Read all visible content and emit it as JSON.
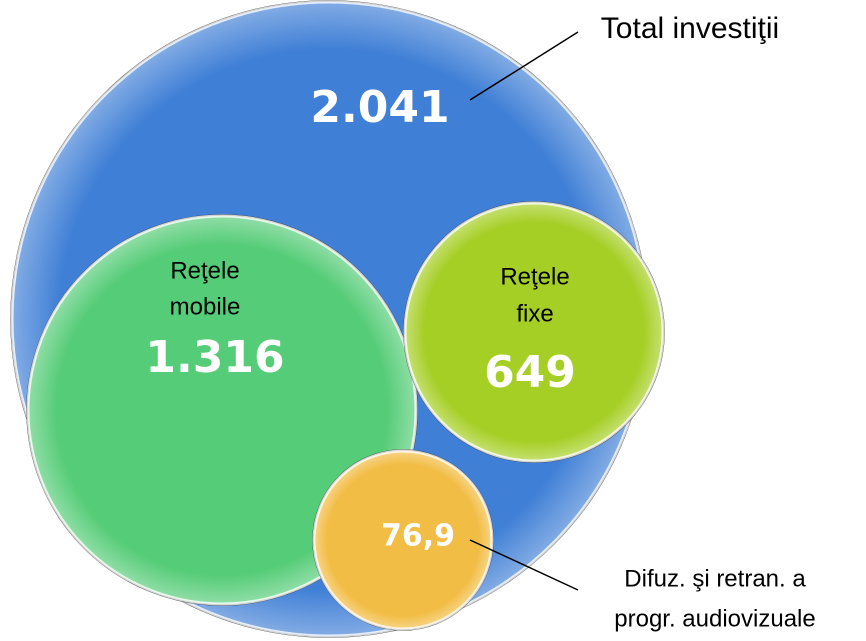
{
  "chart_data": {
    "type": "nested-circles",
    "total": {
      "name": "Total investiţii",
      "value": 2041,
      "value_label": "2.041",
      "color": "#3f7fd6"
    },
    "series": [
      {
        "name": [
          "Reţele",
          "mobile"
        ],
        "value": 1316,
        "value_label": "1.316",
        "color": "#55cc77"
      },
      {
        "name": [
          "Reţele",
          "fixe"
        ],
        "value": 649,
        "value_label": "649",
        "color": "#a6cf26"
      },
      {
        "name": [
          "Difuz. şi retran. a",
          "progr. audiovizuale"
        ],
        "value": 76.9,
        "value_label": "76,9",
        "color": "#f2bd45"
      }
    ]
  }
}
